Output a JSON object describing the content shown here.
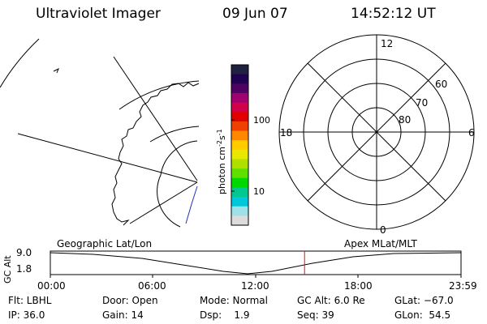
{
  "header": {
    "title": "Ultraviolet Imager",
    "date": "09 Jun 07",
    "time": "14:52:12 UT"
  },
  "colorbar": {
    "label": "photon cm^-2 s^-1",
    "label_main": "photon cm",
    "label_exp1": "-2",
    "label_s": "s",
    "label_exp2": "-1",
    "tick_100": "100",
    "tick_10": "10",
    "colors": [
      "#202040",
      "#200050",
      "#500060",
      "#a00070",
      "#d0004a",
      "#e00000",
      "#f04000",
      "#ff8800",
      "#ffcc00",
      "#e8e800",
      "#b0e000",
      "#60e000",
      "#00d800",
      "#00c890",
      "#00c8d8",
      "#a0e0e8",
      "#dcdcdc"
    ]
  },
  "polar_plot": {
    "label_12": "12",
    "label_18": "18",
    "label_6": "6",
    "label_0": "0",
    "label_60": "60",
    "label_70": "70",
    "label_80": "80"
  },
  "altitude_plot": {
    "left_label": "Geographic Lat/Lon",
    "right_label": "Apex MLat/MLT",
    "y_axis_label": "GC Alt",
    "y_max": "9.0",
    "y_min": "1.8",
    "x_ticks": [
      "00:00",
      "06:00",
      "12:00",
      "18:00",
      "23:59"
    ],
    "current_time_fraction": 0.619
  },
  "info": {
    "filter": "Flt: LBHL",
    "ip": "IP: 36.0",
    "door": "Door: Open",
    "gain": "Gain: 14",
    "mode": "Mode: Normal",
    "dsp": "Dsp:    1.9",
    "gc_alt": "GC Alt: 6.0 Re",
    "seq": "Seq: 39",
    "glat": "GLat: −67.0",
    "glon": "GLon:  54.5"
  }
}
